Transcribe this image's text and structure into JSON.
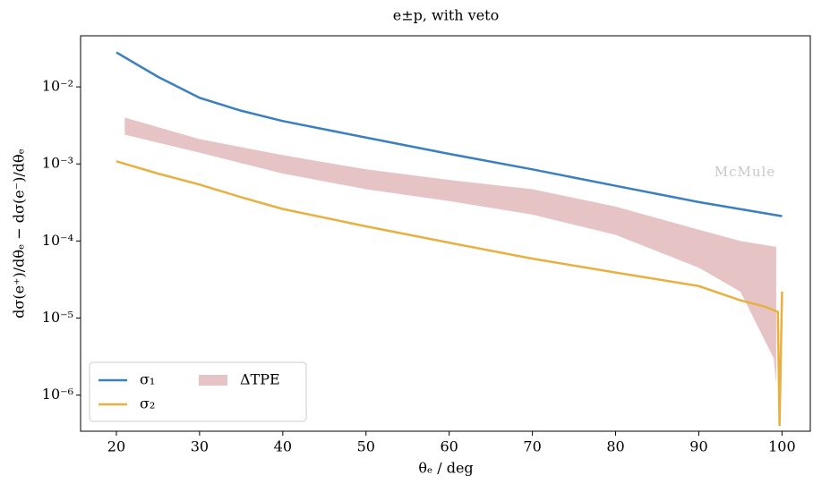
{
  "chart_data": {
    "type": "line",
    "title": "e±p, with veto",
    "x_label": "θₑ / deg",
    "y_label": "dσ(e⁺)/dθₑ − dσ(e⁻)/dθₑ",
    "watermark": "McMule",
    "log_y": true,
    "legend_position": "lower left",
    "xlim": [
      15.7,
      103.4
    ],
    "xticks": [
      20,
      30,
      40,
      50,
      60,
      70,
      80,
      90,
      100
    ],
    "ylim": [
      3.4e-07,
      0.046
    ],
    "yticks": [
      {
        "value": 0.01,
        "label": "10⁻²"
      },
      {
        "value": 0.001,
        "label": "10⁻³"
      },
      {
        "value": 0.0001,
        "label": "10⁻⁴"
      },
      {
        "value": 1e-05,
        "label": "10⁻⁵"
      },
      {
        "value": 1e-06,
        "label": "10⁻⁶"
      }
    ],
    "series": [
      {
        "name": "σ₁",
        "color": "#3a7fc0",
        "x": [
          20,
          25,
          30,
          35,
          40,
          50,
          60,
          70,
          80,
          90,
          100
        ],
        "values": [
          0.028,
          0.0135,
          0.0072,
          0.0049,
          0.0036,
          0.0022,
          0.00135,
          0.00085,
          0.00052,
          0.00032,
          0.00021
        ]
      },
      {
        "name": "σ₂",
        "color": "#e8b040",
        "x": [
          20,
          25,
          30,
          35,
          40,
          50,
          60,
          70,
          80,
          90,
          95,
          98,
          99.5,
          99.7,
          100
        ],
        "values": [
          0.00108,
          0.00075,
          0.00054,
          0.00037,
          0.00026,
          0.000155,
          9.5e-05,
          5.9e-05,
          3.9e-05,
          2.6e-05,
          1.7e-05,
          1.4e-05,
          1.2e-05,
          4e-07,
          2.2e-05
        ]
      },
      {
        "name": "ΔTPE",
        "color": "#e6c4c6",
        "band": true,
        "x": [
          21,
          30,
          40,
          50,
          60,
          70,
          80,
          90,
          95,
          99,
          99.3
        ],
        "upper": [
          0.004,
          0.0021,
          0.0013,
          0.00085,
          0.00062,
          0.00047,
          0.00028,
          0.00014,
          0.0001,
          8.5e-05,
          8.5e-05
        ],
        "lower": [
          0.0024,
          0.0014,
          0.00075,
          0.00047,
          0.00033,
          0.00022,
          0.00012,
          4.5e-05,
          2.2e-05,
          3e-06,
          1.4e-06
        ]
      }
    ]
  }
}
